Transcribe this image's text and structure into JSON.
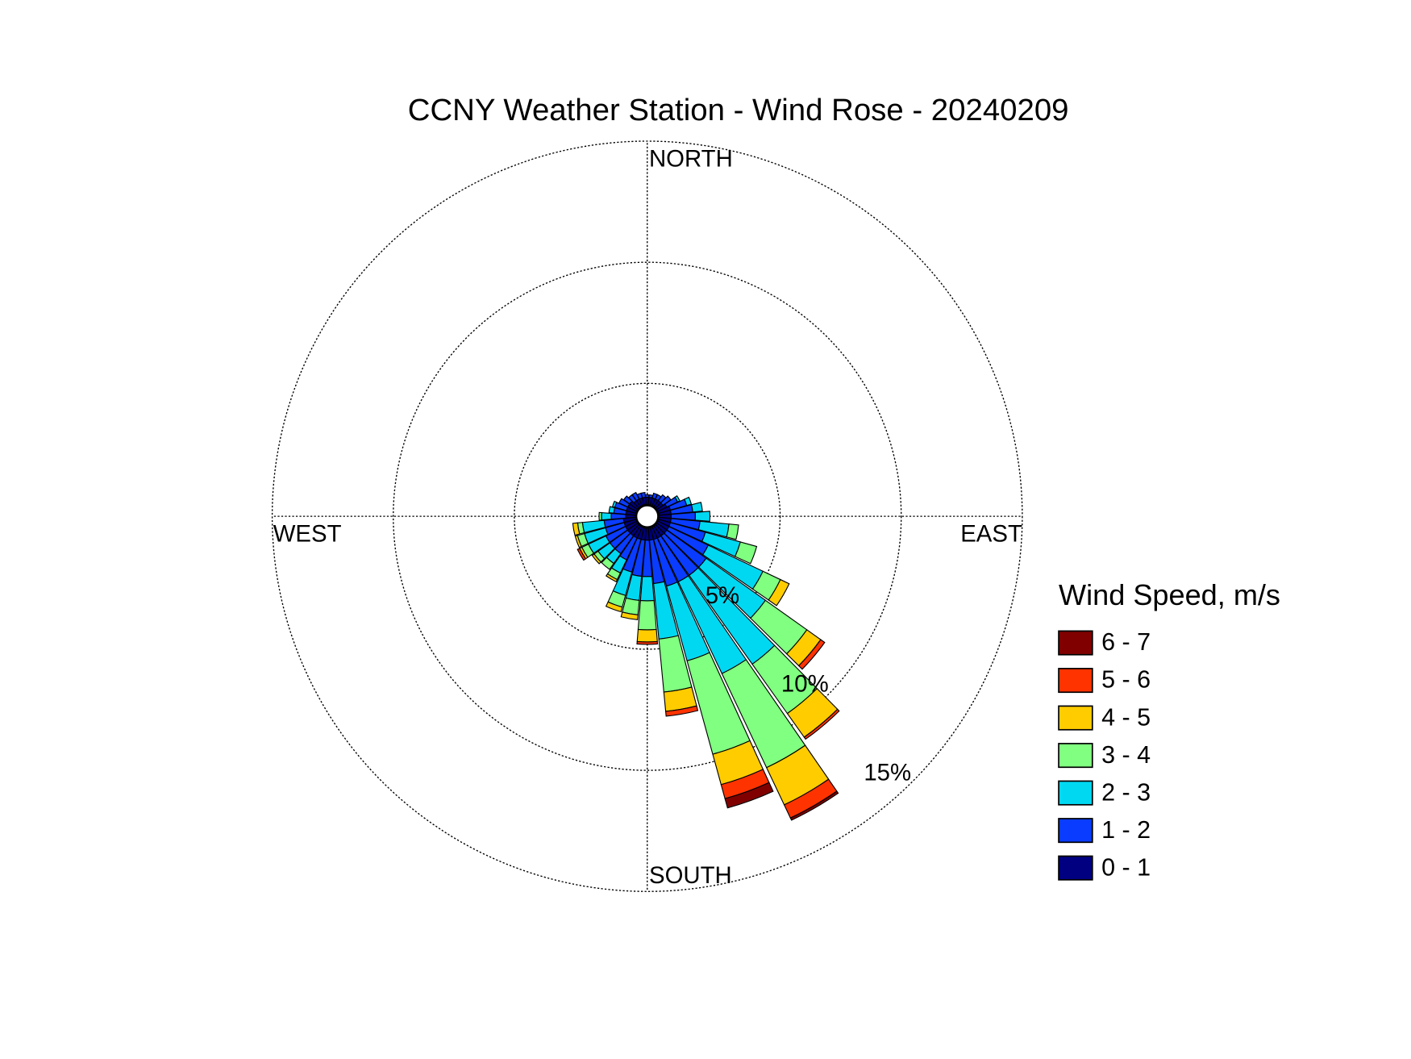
{
  "chart_data": {
    "type": "windrose",
    "title": "CCNY Weather Station - Wind Rose - 20240209",
    "direction_labels": [
      "NORTH",
      "EAST",
      "SOUTH",
      "WEST"
    ],
    "directions": [
      0,
      10,
      20,
      30,
      40,
      50,
      60,
      70,
      80,
      90,
      100,
      110,
      120,
      130,
      140,
      150,
      160,
      170,
      180,
      190,
      200,
      210,
      220,
      230,
      240,
      250,
      260,
      270,
      280,
      290,
      300,
      310,
      320,
      330,
      340,
      350
    ],
    "rlim": [
      0,
      15
    ],
    "rticks": [
      {
        "value": 5,
        "label": "5%"
      },
      {
        "value": 10,
        "label": "10%"
      },
      {
        "value": 15,
        "label": "15%"
      }
    ],
    "grid": true,
    "legend_title": "Wind Speed, m/s",
    "series": [
      {
        "name": "0 - 1",
        "color": "#000080",
        "values": [
          0.3,
          0.3,
          0.3,
          0.3,
          0.3,
          0.3,
          0.4,
          0.5,
          0.5,
          0.5,
          0.5,
          0.5,
          0.5,
          0.5,
          0.5,
          0.5,
          0.5,
          0.5,
          0.5,
          0.5,
          0.5,
          0.5,
          0.5,
          0.5,
          0.5,
          0.5,
          0.5,
          0.4,
          0.4,
          0.4,
          0.4,
          0.4,
          0.3,
          0.3,
          0.3,
          0.3
        ]
      },
      {
        "name": "1 - 2",
        "color": "#0a3cff",
        "values": [
          0.1,
          0.1,
          0.2,
          0.2,
          0.3,
          0.4,
          0.5,
          0.7,
          0.9,
          1.0,
          1.2,
          1.5,
          1.8,
          2.0,
          2.0,
          2.0,
          2.0,
          1.8,
          1.5,
          1.5,
          1.4,
          1.0,
          0.9,
          0.9,
          0.9,
          0.8,
          0.8,
          0.6,
          0.5,
          0.5,
          0.4,
          0.3,
          0.3,
          0.3,
          0.2,
          0.2
        ]
      },
      {
        "name": "2 - 3",
        "color": "#00d8f2",
        "values": [
          0,
          0,
          0,
          0,
          0,
          0,
          0.1,
          0.2,
          0.4,
          0.6,
          1.2,
          1.5,
          2.5,
          3.0,
          4.5,
          4.2,
          3.2,
          2.3,
          1.0,
          1.0,
          1.0,
          0.6,
          0.5,
          0.6,
          0.8,
          0.9,
          0.9,
          0.4,
          0.2,
          0.1,
          0,
          0,
          0,
          0,
          0,
          0
        ]
      },
      {
        "name": "3 - 4",
        "color": "#80ff80",
        "values": [
          0,
          0,
          0,
          0,
          0,
          0,
          0,
          0,
          0,
          0,
          0.4,
          0.7,
          0.8,
          2.1,
          2.5,
          4.3,
          4.0,
          2.2,
          1.2,
          0.6,
          0.5,
          0.3,
          0.3,
          0.2,
          0.3,
          0.3,
          0.2,
          0.1,
          0,
          0,
          0,
          0,
          0,
          0,
          0,
          0
        ]
      },
      {
        "name": "4 - 5",
        "color": "#ffcc00",
        "values": [
          0,
          0,
          0,
          0,
          0,
          0,
          0,
          0,
          0,
          0,
          0,
          0,
          0.4,
          0.7,
          1.2,
          1.7,
          1.3,
          0.8,
          0.5,
          0.2,
          0.2,
          0.1,
          0,
          0.1,
          0.1,
          0.1,
          0.2,
          0,
          0,
          0,
          0,
          0,
          0,
          0,
          0,
          0
        ]
      },
      {
        "name": "5 - 6",
        "color": "#ff3300",
        "values": [
          0,
          0,
          0,
          0,
          0,
          0,
          0,
          0,
          0,
          0,
          0,
          0,
          0,
          0.2,
          0.1,
          0.6,
          0.6,
          0.2,
          0.1,
          0,
          0,
          0,
          0,
          0,
          0.1,
          0,
          0,
          0,
          0,
          0,
          0,
          0,
          0,
          0,
          0,
          0
        ]
      },
      {
        "name": "6 - 7",
        "color": "#800000",
        "values": [
          0,
          0,
          0,
          0,
          0,
          0,
          0,
          0,
          0,
          0,
          0,
          0,
          0,
          0,
          0,
          0.1,
          0.4,
          0,
          0,
          0,
          0,
          0,
          0,
          0,
          0,
          0,
          0,
          0,
          0,
          0,
          0,
          0,
          0,
          0,
          0,
          0
        ]
      }
    ]
  }
}
